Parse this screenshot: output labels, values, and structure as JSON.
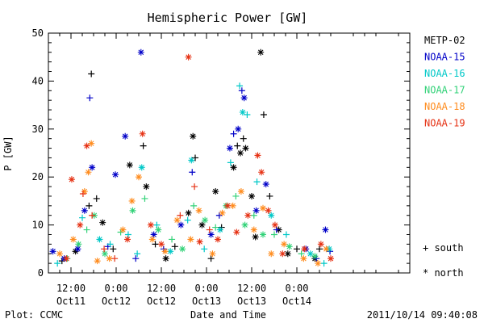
{
  "chart_data": {
    "type": "scatter",
    "title": "Hemispheric Power [GW]",
    "xlabel": "Date and Time",
    "ylabel": "P [GW]",
    "ylim": [
      0,
      50
    ],
    "xlim": [
      "2011-10-11 06:00",
      "2011-10-15 06:00"
    ],
    "y_ticks": [
      "0",
      "10",
      "20",
      "30",
      "40",
      "50"
    ],
    "x_ticks": [
      {
        "top": "12:00",
        "bottom": "Oct11",
        "at": "2011-10-11 12:00"
      },
      {
        "top": "0:00",
        "bottom": "Oct12",
        "at": "2011-10-12 00:00"
      },
      {
        "top": "12:00",
        "bottom": "Oct12",
        "at": "2011-10-12 12:00"
      },
      {
        "top": "0:00",
        "bottom": "Oct13",
        "at": "2011-10-13 00:00"
      },
      {
        "top": "12:00",
        "bottom": "Oct13",
        "at": "2011-10-13 12:00"
      },
      {
        "top": "0:00",
        "bottom": "Oct14",
        "at": "2011-10-14 00:00"
      }
    ],
    "legend": {
      "placement": "right",
      "marker_south": "+ south",
      "marker_north": "* north"
    },
    "series": [
      {
        "name": "METP-02",
        "color": "#000000",
        "points": [
          [
            "2011-10-11 09:36",
            "+",
            2.5
          ],
          [
            "2011-10-11 13:12",
            "*",
            4.5
          ],
          [
            "2011-10-11 16:48",
            "+",
            14
          ],
          [
            "2011-10-11 17:24",
            "+",
            41.5
          ],
          [
            "2011-10-11 18:48",
            "+",
            15.5
          ],
          [
            "2011-10-11 20:24",
            "*",
            10.5
          ],
          [
            "2011-10-11 23:12",
            "+",
            5
          ],
          [
            "2011-10-12 03:36",
            "*",
            22.5
          ],
          [
            "2011-10-12 07:12",
            "+",
            26.5
          ],
          [
            "2011-10-12 08:00",
            "*",
            18
          ],
          [
            "2011-10-12 10:24",
            "+",
            6
          ],
          [
            "2011-10-12 13:12",
            "*",
            3
          ],
          [
            "2011-10-12 15:36",
            "+",
            5.5
          ],
          [
            "2011-10-12 19:12",
            "*",
            12.5
          ],
          [
            "2011-10-12 20:24",
            "*",
            28.5
          ],
          [
            "2011-10-12 21:00",
            "+",
            24
          ],
          [
            "2011-10-12 22:48",
            "*",
            10
          ],
          [
            "2011-10-13 01:12",
            "+",
            3
          ],
          [
            "2011-10-13 02:24",
            "*",
            17
          ],
          [
            "2011-10-13 04:00",
            "+",
            9.5
          ],
          [
            "2011-10-13 07:12",
            "*",
            22
          ],
          [
            "2011-10-13 08:12",
            "+",
            26.5
          ],
          [
            "2011-10-13 09:00",
            "*",
            25
          ],
          [
            "2011-10-13 09:48",
            "+",
            28
          ],
          [
            "2011-10-13 10:24",
            "*",
            26
          ],
          [
            "2011-10-13 12:00",
            "*",
            16
          ],
          [
            "2011-10-13 13:00",
            "*",
            7.5
          ],
          [
            "2011-10-13 14:24",
            "*",
            46
          ],
          [
            "2011-10-13 15:12",
            "+",
            33
          ],
          [
            "2011-10-13 16:48",
            "+",
            16
          ],
          [
            "2011-10-13 19:12",
            "*",
            9
          ],
          [
            "2011-10-13 21:36",
            "*",
            4
          ],
          [
            "2011-10-14 00:00",
            "+",
            5
          ],
          [
            "2011-10-14 04:48",
            "*",
            3
          ],
          [
            "2011-10-14 06:00",
            "+",
            5
          ]
        ]
      },
      {
        "name": "NOAA-15",
        "color": "#0000c8",
        "points": [
          [
            "2011-10-11 07:12",
            "*",
            4.5
          ],
          [
            "2011-10-11 10:12",
            "*",
            3
          ],
          [
            "2011-10-11 13:48",
            "*",
            5
          ],
          [
            "2011-10-11 15:36",
            "*",
            13
          ],
          [
            "2011-10-11 17:00",
            "+",
            36.5
          ],
          [
            "2011-10-11 17:36",
            "*",
            22
          ],
          [
            "2011-10-11 21:48",
            "+",
            5.5
          ],
          [
            "2011-10-11 23:48",
            "*",
            20.5
          ],
          [
            "2011-10-12 02:24",
            "*",
            28.5
          ],
          [
            "2011-10-12 05:12",
            "+",
            3
          ],
          [
            "2011-10-12 06:36",
            "*",
            46
          ],
          [
            "2011-10-12 10:00",
            "*",
            8
          ],
          [
            "2011-10-12 12:36",
            "+",
            5
          ],
          [
            "2011-10-12 17:12",
            "*",
            10
          ],
          [
            "2011-10-12 20:12",
            "+",
            21
          ],
          [
            "2011-10-13 01:12",
            "*",
            8
          ],
          [
            "2011-10-13 03:24",
            "+",
            12
          ],
          [
            "2011-10-13 06:12",
            "*",
            26
          ],
          [
            "2011-10-13 07:12",
            "+",
            29
          ],
          [
            "2011-10-13 08:24",
            "*",
            30
          ],
          [
            "2011-10-13 09:24",
            "+",
            38
          ],
          [
            "2011-10-13 10:00",
            "*",
            36.5
          ],
          [
            "2011-10-13 13:12",
            "*",
            13
          ],
          [
            "2011-10-13 15:48",
            "*",
            18.5
          ],
          [
            "2011-10-13 18:36",
            "+",
            9
          ],
          [
            "2011-10-14 02:24",
            "*",
            5
          ],
          [
            "2011-10-14 05:12",
            "+",
            3
          ],
          [
            "2011-10-14 07:36",
            "*",
            9
          ],
          [
            "2011-10-14 08:48",
            "+",
            4.5
          ]
        ]
      },
      {
        "name": "NOAA-16",
        "color": "#00c8c8",
        "points": [
          [
            "2011-10-11 08:24",
            "+",
            2
          ],
          [
            "2011-10-11 15:00",
            "+",
            11.5
          ],
          [
            "2011-10-11 19:36",
            "*",
            7
          ],
          [
            "2011-10-11 22:24",
            "+",
            6
          ],
          [
            "2011-10-12 03:12",
            "+",
            8
          ],
          [
            "2011-10-12 05:36",
            "+",
            4
          ],
          [
            "2011-10-12 06:48",
            "*",
            22
          ],
          [
            "2011-10-12 10:48",
            "+",
            10
          ],
          [
            "2011-10-12 14:24",
            "*",
            4.5
          ],
          [
            "2011-10-12 19:00",
            "+",
            11
          ],
          [
            "2011-10-12 20:00",
            "*",
            23.5
          ],
          [
            "2011-10-12 23:24",
            "+",
            5
          ],
          [
            "2011-10-13 03:36",
            "*",
            9
          ],
          [
            "2011-10-13 06:24",
            "+",
            23
          ],
          [
            "2011-10-13 08:48",
            "+",
            39
          ],
          [
            "2011-10-13 09:36",
            "*",
            33.5
          ],
          [
            "2011-10-13 10:48",
            "+",
            33
          ],
          [
            "2011-10-13 13:24",
            "+",
            19
          ],
          [
            "2011-10-13 17:12",
            "*",
            12
          ],
          [
            "2011-10-13 21:12",
            "+",
            8
          ],
          [
            "2011-10-14 03:36",
            "*",
            4
          ],
          [
            "2011-10-14 07:12",
            "+",
            2
          ],
          [
            "2011-10-14 08:36",
            "*",
            5
          ]
        ]
      },
      {
        "name": "NOAA-17",
        "color": "#32d278",
        "points": [
          [
            "2011-10-11 11:00",
            "+",
            3
          ],
          [
            "2011-10-11 14:00",
            "*",
            6
          ],
          [
            "2011-10-11 16:12",
            "+",
            9
          ],
          [
            "2011-10-11 18:12",
            "*",
            12
          ],
          [
            "2011-10-11 21:00",
            "*",
            4
          ],
          [
            "2011-10-12 01:12",
            "+",
            8.5
          ],
          [
            "2011-10-12 04:24",
            "*",
            13
          ],
          [
            "2011-10-12 07:36",
            "+",
            15.5
          ],
          [
            "2011-10-12 11:12",
            "*",
            9
          ],
          [
            "2011-10-12 14:48",
            "+",
            7
          ],
          [
            "2011-10-12 17:36",
            "*",
            5
          ],
          [
            "2011-10-12 20:36",
            "+",
            14
          ],
          [
            "2011-10-12 23:36",
            "*",
            11
          ],
          [
            "2011-10-13 02:24",
            "+",
            9.5
          ],
          [
            "2011-10-13 05:12",
            "*",
            14
          ],
          [
            "2011-10-13 07:48",
            "+",
            16
          ],
          [
            "2011-10-13 10:12",
            "*",
            10
          ],
          [
            "2011-10-13 12:36",
            "+",
            12
          ],
          [
            "2011-10-13 15:00",
            "*",
            8
          ],
          [
            "2011-10-13 18:00",
            "+",
            8
          ],
          [
            "2011-10-13 22:00",
            "*",
            5.5
          ],
          [
            "2011-10-14 01:12",
            "+",
            4
          ],
          [
            "2011-10-14 04:48",
            "*",
            3.5
          ]
        ]
      },
      {
        "name": "NOAA-18",
        "color": "#ff8c1e",
        "points": [
          [
            "2011-10-11 09:00",
            "*",
            4
          ],
          [
            "2011-10-11 12:36",
            "*",
            7
          ],
          [
            "2011-10-11 15:36",
            "*",
            17
          ],
          [
            "2011-10-11 16:36",
            "*",
            21
          ],
          [
            "2011-10-11 17:24",
            "*",
            27
          ],
          [
            "2011-10-11 19:00",
            "*",
            2.5
          ],
          [
            "2011-10-11 22:12",
            "*",
            3
          ],
          [
            "2011-10-12 01:48",
            "*",
            9
          ],
          [
            "2011-10-12 04:12",
            "*",
            15
          ],
          [
            "2011-10-12 06:00",
            "*",
            20
          ],
          [
            "2011-10-12 09:36",
            "*",
            7
          ],
          [
            "2011-10-12 13:00",
            "*",
            4.5
          ],
          [
            "2011-10-12 16:12",
            "*",
            11
          ],
          [
            "2011-10-12 19:48",
            "*",
            7
          ],
          [
            "2011-10-12 22:00",
            "*",
            13
          ],
          [
            "2011-10-13 01:36",
            "*",
            4
          ],
          [
            "2011-10-13 04:12",
            "*",
            12.5
          ],
          [
            "2011-10-13 07:00",
            "*",
            14
          ],
          [
            "2011-10-13 09:12",
            "*",
            17
          ],
          [
            "2011-10-13 12:36",
            "*",
            9
          ],
          [
            "2011-10-13 15:00",
            "*",
            13.5
          ],
          [
            "2011-10-13 17:12",
            "*",
            4
          ],
          [
            "2011-10-13 20:36",
            "*",
            6
          ],
          [
            "2011-10-14 01:48",
            "*",
            3
          ],
          [
            "2011-10-14 05:36",
            "*",
            2
          ],
          [
            "2011-10-14 07:48",
            "*",
            5
          ]
        ]
      },
      {
        "name": "NOAA-19",
        "color": "#e63214",
        "points": [
          [
            "2011-10-11 10:48",
            "*",
            3
          ],
          [
            "2011-10-11 12:12",
            "*",
            19.5
          ],
          [
            "2011-10-11 14:24",
            "*",
            10
          ],
          [
            "2011-10-11 15:12",
            "+",
            16.5
          ],
          [
            "2011-10-11 16:12",
            "*",
            26.5
          ],
          [
            "2011-10-11 17:36",
            "+",
            12
          ],
          [
            "2011-10-11 20:48",
            "+",
            5
          ],
          [
            "2011-10-11 23:36",
            "+",
            3
          ],
          [
            "2011-10-12 03:00",
            "*",
            7
          ],
          [
            "2011-10-12 07:00",
            "*",
            29
          ],
          [
            "2011-10-12 09:12",
            "*",
            10
          ],
          [
            "2011-10-12 12:00",
            "*",
            6
          ],
          [
            "2011-10-12 17:00",
            "+",
            12
          ],
          [
            "2011-10-12 19:12",
            "*",
            45
          ],
          [
            "2011-10-12 20:48",
            "+",
            18
          ],
          [
            "2011-10-12 22:12",
            "*",
            6.5
          ],
          [
            "2011-10-13 00:48",
            "+",
            9
          ],
          [
            "2011-10-13 03:00",
            "*",
            7
          ],
          [
            "2011-10-13 05:36",
            "*",
            14
          ],
          [
            "2011-10-13 08:00",
            "*",
            8.5
          ],
          [
            "2011-10-13 11:00",
            "*",
            12
          ],
          [
            "2011-10-13 13:36",
            "*",
            24.5
          ],
          [
            "2011-10-13 14:36",
            "*",
            21
          ],
          [
            "2011-10-13 16:24",
            "*",
            13
          ],
          [
            "2011-10-13 18:12",
            "*",
            10
          ],
          [
            "2011-10-13 20:12",
            "*",
            4
          ],
          [
            "2011-10-14 02:00",
            "*",
            5
          ],
          [
            "2011-10-14 06:24",
            "*",
            6
          ],
          [
            "2011-10-14 09:00",
            "*",
            3
          ]
        ]
      }
    ]
  },
  "footer": {
    "left": "Plot: CCMC",
    "right": "2011/10/14 09:40:08"
  }
}
